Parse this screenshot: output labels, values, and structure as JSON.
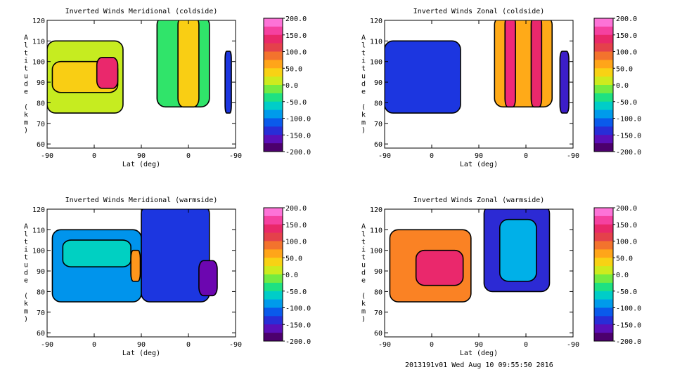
{
  "chart_data": [
    {
      "type": "heatmap",
      "title": "Inverted Winds Meridional (coldside)",
      "xlabel": "Lat (deg)",
      "ylabel": "Altitude (km)",
      "x_ticks": [
        "-90",
        "0",
        "90",
        "0",
        "-90"
      ],
      "y_ticks": [
        "60",
        "70",
        "80",
        "90",
        "100",
        "110",
        "120"
      ],
      "ylim": [
        58,
        120
      ],
      "colorbar_ticks": [
        "200.0",
        "150.0",
        "100.0",
        "50.0",
        "0.0",
        "-50.0",
        "-100.0",
        "-150.0",
        "-200.0"
      ],
      "colorbar_range": [
        -200,
        200
      ],
      "regions": [
        {
          "x": [
            -90,
            55
          ],
          "y": [
            75,
            110
          ],
          "value": 10
        },
        {
          "x": [
            -80,
            45
          ],
          "y": [
            85,
            100
          ],
          "value": 40
        },
        {
          "x": [
            5,
            45
          ],
          "y": [
            87,
            102
          ],
          "value": 140
        },
        {
          "x": [
            120,
            220
          ],
          "y": [
            78,
            122
          ],
          "value": -30
        },
        {
          "x": [
            160,
            200
          ],
          "y": [
            78,
            122
          ],
          "value": 40
        },
        {
          "x": [
            250,
            262
          ],
          "y": [
            75,
            105
          ],
          "value": -130
        }
      ]
    },
    {
      "type": "heatmap",
      "title": "Inverted Winds Zonal (coldside)",
      "xlabel": "Lat (deg)",
      "ylabel": "Altitude (km)",
      "x_ticks": [
        "-90",
        "0",
        "90",
        "0",
        "-90"
      ],
      "y_ticks": [
        "60",
        "70",
        "80",
        "90",
        "100",
        "110",
        "120"
      ],
      "ylim": [
        58,
        120
      ],
      "colorbar_ticks": [
        "200.0",
        "150.0",
        "100.0",
        "50.0",
        "0.0",
        "-50.0",
        "-100.0",
        "-150.0",
        "-200.0"
      ],
      "colorbar_range": [
        -200,
        200
      ],
      "regions": [
        {
          "x": [
            -90,
            55
          ],
          "y": [
            75,
            110
          ],
          "value": -130
        },
        {
          "x": [
            120,
            230
          ],
          "y": [
            78,
            122
          ],
          "value": 60
        },
        {
          "x": [
            140,
            160
          ],
          "y": [
            78,
            122
          ],
          "value": 150
        },
        {
          "x": [
            190,
            210
          ],
          "y": [
            78,
            122
          ],
          "value": 140
        },
        {
          "x": [
            245,
            262
          ],
          "y": [
            75,
            105
          ],
          "value": -150
        }
      ]
    },
    {
      "type": "heatmap",
      "title": "Inverted Winds Meridional (warmside)",
      "xlabel": "Lat (deg)",
      "ylabel": "Altitude (km)",
      "x_ticks": [
        "-90",
        "0",
        "90",
        "0",
        "-90"
      ],
      "y_ticks": [
        "60",
        "70",
        "80",
        "90",
        "100",
        "110",
        "120"
      ],
      "ylim": [
        58,
        120
      ],
      "colorbar_ticks": [
        "200.0",
        "150.0",
        "100.0",
        "50.0",
        "0.0",
        "-50.0",
        "-100.0",
        "-150.0",
        "-200.0"
      ],
      "colorbar_range": [
        -200,
        200
      ],
      "regions": [
        {
          "x": [
            -80,
            90
          ],
          "y": [
            75,
            110
          ],
          "value": -90
        },
        {
          "x": [
            -60,
            70
          ],
          "y": [
            92,
            105
          ],
          "value": -60
        },
        {
          "x": [
            70,
            88
          ],
          "y": [
            85,
            100
          ],
          "value": 70
        },
        {
          "x": [
            90,
            220
          ],
          "y": [
            75,
            122
          ],
          "value": -130
        },
        {
          "x": [
            200,
            235
          ],
          "y": [
            78,
            95
          ],
          "value": -170
        }
      ]
    },
    {
      "type": "heatmap",
      "title": "Inverted Winds Zonal (warmside)",
      "xlabel": "Lat (deg)",
      "ylabel": "Altitude (km)",
      "x_ticks": [
        "-90",
        "0",
        "90",
        "0",
        "-90"
      ],
      "y_ticks": [
        "60",
        "70",
        "80",
        "90",
        "100",
        "110",
        "120"
      ],
      "ylim": [
        58,
        120
      ],
      "colorbar_ticks": [
        "200.0",
        "150.0",
        "100.0",
        "50.0",
        "0.0",
        "-50.0",
        "-100.0",
        "-150.0",
        "-200.0"
      ],
      "colorbar_range": [
        -200,
        200
      ],
      "regions": [
        {
          "x": [
            -80,
            75
          ],
          "y": [
            75,
            110
          ],
          "value": 80
        },
        {
          "x": [
            -30,
            60
          ],
          "y": [
            83,
            100
          ],
          "value": 140
        },
        {
          "x": [
            100,
            225
          ],
          "y": [
            80,
            122
          ],
          "value": -140
        },
        {
          "x": [
            130,
            200
          ],
          "y": [
            85,
            115
          ],
          "value": -80
        }
      ]
    }
  ],
  "footer": "2013191v01 Wed Aug 10 09:55:50 2016"
}
